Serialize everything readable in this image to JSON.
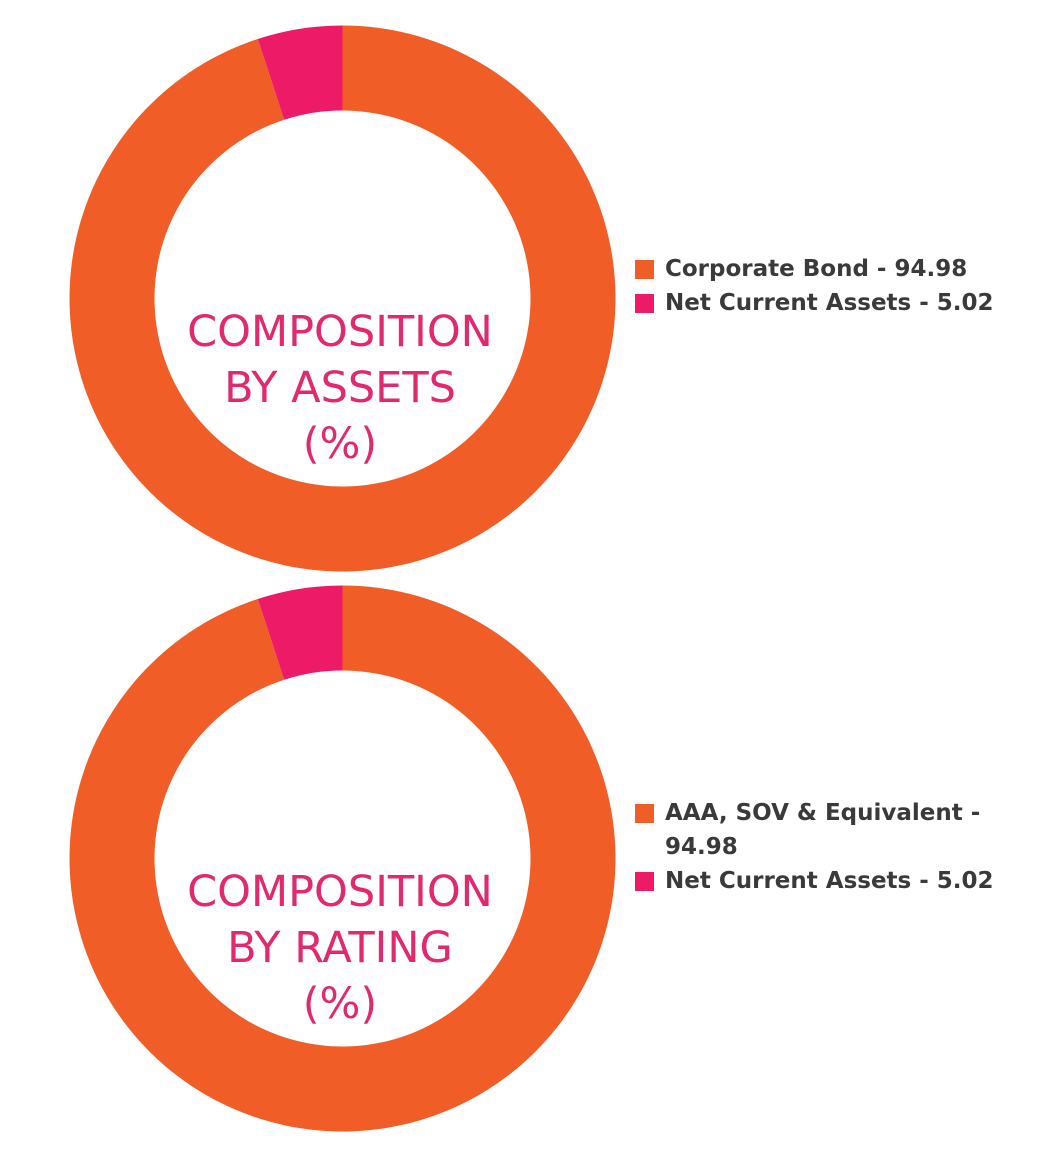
{
  "colors": {
    "orange": "#f15d27",
    "pink": "#ec1a67",
    "title": "#e0296e",
    "legend_text": "#3a3a3a"
  },
  "chart_data": [
    {
      "type": "pie",
      "title_lines": [
        "COMPOSITION",
        "BY ASSETS",
        "(%)"
      ],
      "slices": [
        {
          "label": "Corporate Bond - 94.98",
          "value": 94.98,
          "color": "#f15d27"
        },
        {
          "label": "Net Current Assets - 5.02",
          "value": 5.02,
          "color": "#ec1a67"
        }
      ],
      "legend_position": "right"
    },
    {
      "type": "pie",
      "title_lines": [
        "COMPOSITION",
        "BY RATING",
        "(%)"
      ],
      "slices": [
        {
          "label": "AAA, SOV & Equivalent - 94.98",
          "value": 94.98,
          "color": "#f15d27"
        },
        {
          "label": "Net Current Assets - 5.02",
          "value": 5.02,
          "color": "#ec1a67"
        }
      ],
      "legend_position": "right"
    }
  ]
}
